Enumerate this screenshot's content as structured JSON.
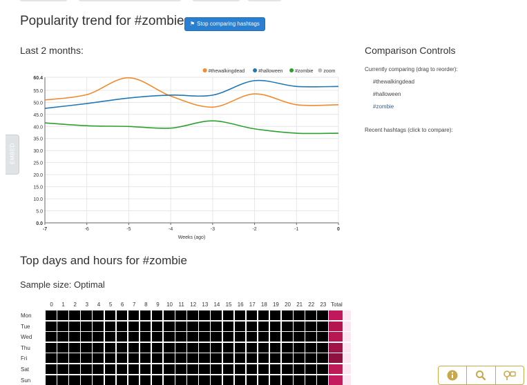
{
  "header": {
    "title": "Popularity trend for #zombie",
    "stop_button_label": "Stop comparing hashtags"
  },
  "trend": {
    "subtitle": "Last 2 months:"
  },
  "embed_tab": {
    "label": "EMBED"
  },
  "chart_data": {
    "type": "line",
    "x": [
      -7,
      -6,
      -5,
      -4,
      -3,
      -2,
      -1,
      0
    ],
    "x_tick_labels": [
      "-7",
      "-6",
      "-5",
      "-4",
      "-3",
      "-2",
      "-1",
      "0"
    ],
    "xlabel": "Weeks (ago)",
    "ylabel": "",
    "ylim": [
      0,
      60.4
    ],
    "y_ticks": [
      0,
      5,
      10,
      15,
      20,
      25,
      30,
      35,
      40,
      45,
      50,
      55,
      60.4
    ],
    "y_tick_labels": [
      "0.0",
      "5.0",
      "10.0",
      "15.0",
      "20.0",
      "25.0",
      "30.0",
      "35.0",
      "40.0",
      "45.0",
      "50.0",
      "55.0",
      "60.4"
    ],
    "grid": true,
    "legend_position": "top-right",
    "series": [
      {
        "name": "#thewalkingdead",
        "color": "#f28a2e",
        "values": [
          51.0,
          53.2,
          60.2,
          52.6,
          48.0,
          53.5,
          49.0,
          49.0
        ]
      },
      {
        "name": "#halloween",
        "color": "#1f77b4",
        "values": [
          47.5,
          49.5,
          51.8,
          53.0,
          53.0,
          59.0,
          56.6,
          56.6
        ]
      },
      {
        "name": "#zombie",
        "color": "#2ca02c",
        "values": [
          41.5,
          40.3,
          40.0,
          39.3,
          42.3,
          39.0,
          37.2,
          37.2
        ]
      }
    ],
    "legend_extra": {
      "name": "zoom",
      "color": "#bbbbbb"
    }
  },
  "comparison": {
    "title": "Comparison Controls",
    "currently_label": "Currently comparing (drag to reorder):",
    "items": [
      {
        "label": "#thewalkingdead",
        "active": false
      },
      {
        "label": "#halloween",
        "active": false
      },
      {
        "label": "#zombie",
        "active": true
      }
    ],
    "recent_label": "Recent hashtags (click to compare):"
  },
  "heatmap": {
    "title": "Top days and hours for #zombie",
    "sample_size": "Sample size: Optimal",
    "hours": [
      "0",
      "1",
      "2",
      "3",
      "4",
      "5",
      "6",
      "7",
      "8",
      "9",
      "10",
      "11",
      "12",
      "13",
      "14",
      "15",
      "16",
      "17",
      "18",
      "19",
      "20",
      "21",
      "22",
      "23"
    ],
    "total_label": "Total",
    "days": [
      "Mon",
      "Tue",
      "Wed",
      "Thu",
      "Fri",
      "Sat",
      "Sun"
    ],
    "cell_color": "#000000",
    "total_colors": [
      "#c0185a",
      "#b3164f",
      "#b81852",
      "#a01447",
      "#8e1240",
      "#bd1a58",
      "#c31b5d"
    ]
  },
  "toolbar": {
    "icons": [
      "info-icon",
      "search-icon",
      "pin-icon"
    ]
  }
}
